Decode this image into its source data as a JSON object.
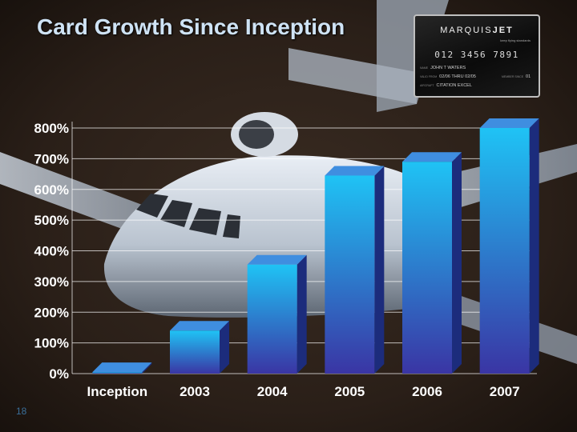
{
  "slide": {
    "title": "Card Growth Since Inception",
    "slide_number": "18"
  },
  "card": {
    "brand_a": "MARQUIS",
    "brand_b": "JET",
    "tagline": "keep flying standards",
    "number": "012 3456 7891",
    "name_key": "NAME",
    "name": "JOHN T WATERS",
    "valid_key": "VALID FROM",
    "valid": "02/06 THRU 02/05",
    "member_key": "MEMBER SINCE",
    "member": "01",
    "aircraft_key": "AIRCRAFT",
    "aircraft": "CITATION EXCEL"
  },
  "colors": {
    "title": "#cfe3f5",
    "tick_label": "#ffffff",
    "gridline": "#ffffff",
    "bar_top": "#1fc3f5",
    "bar_bottom": "#3a35a4",
    "bar_side": "#1c2c7c",
    "bar_cap": "#3f8ee0"
  },
  "chart_data": {
    "type": "bar",
    "title": "Card Growth Since Inception",
    "xlabel": "",
    "ylabel": "",
    "categories": [
      "Inception",
      "2003",
      "2004",
      "2005",
      "2006",
      "2007"
    ],
    "values": [
      5,
      140,
      355,
      645,
      690,
      800
    ],
    "ylim": [
      0,
      800
    ],
    "yticks": [
      "0%",
      "100%",
      "200%",
      "300%",
      "400%",
      "500%",
      "600%",
      "700%",
      "800%"
    ],
    "grid": true,
    "legend": "none"
  }
}
